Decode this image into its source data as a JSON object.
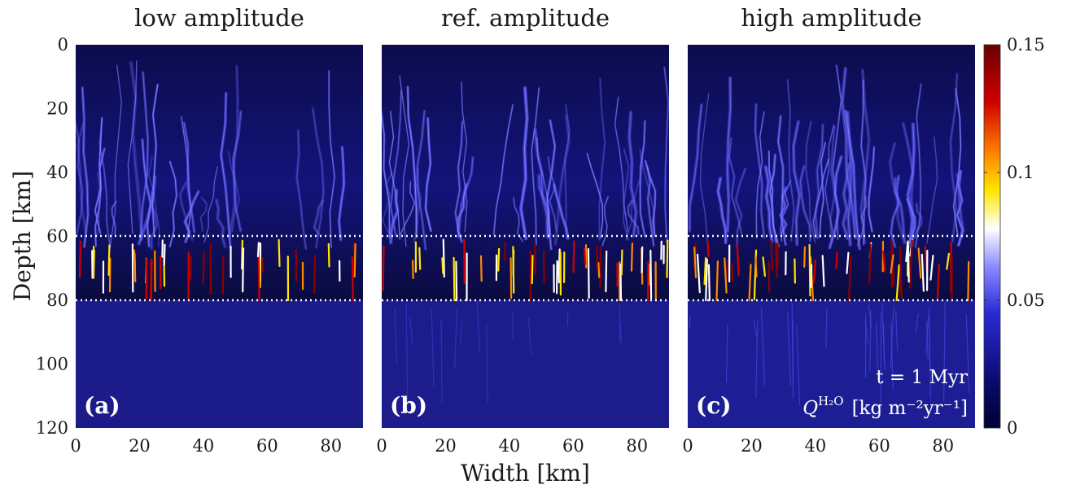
{
  "chart_data": {
    "type": "heatmap",
    "xlabel": "Width [km]",
    "ylabel": "Depth [km]",
    "xlim": [
      0,
      90
    ],
    "ylim": [
      0,
      120
    ],
    "y_reversed": true,
    "x_ticks": [
      "0",
      "20",
      "40",
      "60",
      "80"
    ],
    "y_ticks": [
      "0",
      "20",
      "40",
      "60",
      "80",
      "100",
      "120"
    ],
    "dotted_lines_depth": [
      60,
      80
    ],
    "colorbar": {
      "range": [
        0,
        0.15
      ],
      "ticks": [
        "0",
        "0.05",
        "0.1",
        "0.15"
      ],
      "colormap": [
        "#000033",
        "#0a0a6e",
        "#2a2ad6",
        "#8a8aff",
        "#ffffff",
        "#ffe600",
        "#ff8000",
        "#d10000",
        "#6b0000"
      ]
    },
    "annotation_time": "t = 1 Myr",
    "annotation_quantity": "Q",
    "annotation_quantity_sup": "H₂O",
    "annotation_units": "[kg m⁻²yr⁻¹]",
    "panels": [
      {
        "letter": "(a)",
        "title": "low amplitude"
      },
      {
        "letter": "(b)",
        "title": "ref. amplitude"
      },
      {
        "letter": "(c)",
        "title": "high amplitude"
      }
    ]
  }
}
